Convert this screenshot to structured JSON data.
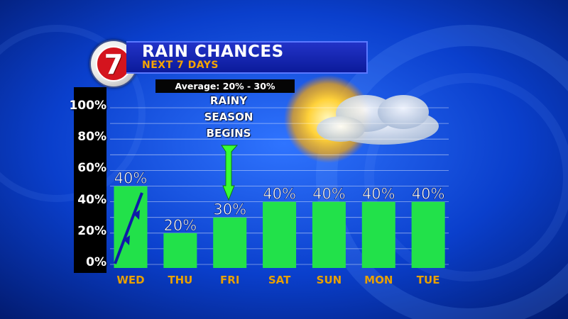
{
  "header": {
    "logo_text": "7",
    "title": "RAIN CHANCES",
    "subtitle": "NEXT 7 DAYS"
  },
  "average_label": "Average: 20% - 30%",
  "annotation": {
    "lines": [
      "RAINY",
      "SEASON",
      "BEGINS"
    ],
    "target_category": "FRI"
  },
  "colors": {
    "bar": "#22e14a",
    "day_label": "#e8a000",
    "arrow": "#39ff33",
    "title_bar": "#1a2bc0"
  },
  "chart_data": {
    "type": "bar",
    "title": "RAIN CHANCES",
    "subtitle": "NEXT 7 DAYS",
    "categories": [
      "WED",
      "THU",
      "FRI",
      "SAT",
      "SUN",
      "MON",
      "TUE"
    ],
    "values": [
      40,
      20,
      30,
      40,
      40,
      40,
      40
    ],
    "data_labels": [
      "40%",
      "20%",
      "30%",
      "40%",
      "40%",
      "40%",
      "40%"
    ],
    "yticks": [
      "0%",
      "20%",
      "40%",
      "60%",
      "80%",
      "100%"
    ],
    "ylim": [
      0,
      100
    ],
    "xlabel": "",
    "ylabel": "",
    "grid": true,
    "legend": "none"
  }
}
